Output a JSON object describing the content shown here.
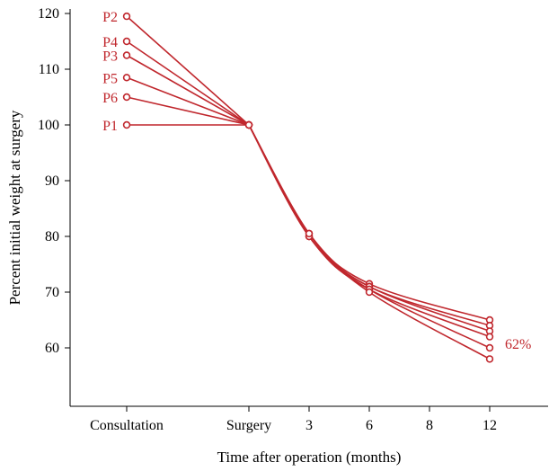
{
  "chart_data": {
    "type": "line",
    "xlabel": "Time after operation (months)",
    "ylabel": "Percent initial weight at surgery",
    "x_categories": [
      "Consultation",
      "Surgery",
      "3",
      "6",
      "8",
      "12"
    ],
    "x_points": [
      "Consultation",
      "Surgery",
      "3",
      "6",
      "12"
    ],
    "y_ticks": [
      60,
      70,
      80,
      90,
      100,
      110,
      120
    ],
    "ylim": [
      50,
      121
    ],
    "grid": false,
    "series_color": "#c0272d",
    "series": [
      {
        "name": "P2",
        "values": [
          119.5,
          100,
          80.5,
          71.5,
          65
        ]
      },
      {
        "name": "P4",
        "values": [
          115,
          100,
          80.5,
          71,
          64
        ]
      },
      {
        "name": "P3",
        "values": [
          112.5,
          100,
          80,
          71,
          63
        ]
      },
      {
        "name": "P5",
        "values": [
          108.5,
          100,
          80,
          70.5,
          62
        ]
      },
      {
        "name": "P6",
        "values": [
          105,
          100,
          80,
          70.5,
          60
        ]
      },
      {
        "name": "P1",
        "values": [
          100,
          100,
          80.5,
          70,
          58
        ]
      }
    ],
    "annotations": [
      "62%"
    ]
  }
}
